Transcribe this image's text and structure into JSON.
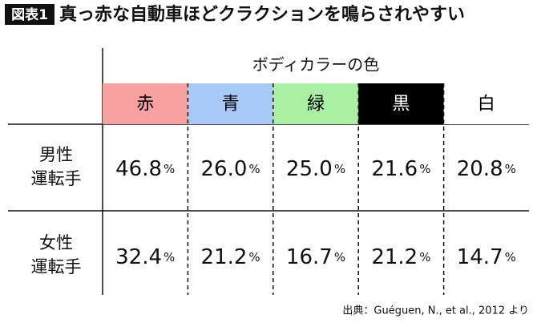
{
  "header": {
    "badge": "図表1",
    "title": "真っ赤な自動車ほどクラクションを鳴らされやすい"
  },
  "table": {
    "group_header": "ボディカラーの色",
    "columns": [
      {
        "label": "赤",
        "color": "#f7a1a1",
        "text_color": "#000000"
      },
      {
        "label": "青",
        "color": "#a9c9f7",
        "text_color": "#000000"
      },
      {
        "label": "緑",
        "color": "#a9f0a3",
        "text_color": "#000000"
      },
      {
        "label": "黒",
        "color": "#000000",
        "text_color": "#ffffff"
      },
      {
        "label": "白",
        "color": "#ffffff",
        "text_color": "#000000"
      }
    ],
    "unit": "%",
    "rows": [
      {
        "label": [
          "男性",
          "運転手"
        ],
        "cells": [
          "46.8",
          "26.0",
          "25.0",
          "21.6",
          "20.8"
        ]
      },
      {
        "label": [
          "女性",
          "運転手"
        ],
        "cells": [
          "32.4",
          "21.2",
          "16.7",
          "21.2",
          "14.7"
        ]
      }
    ]
  },
  "source": "出典：Guéguen, N., et al., 2012 より"
}
